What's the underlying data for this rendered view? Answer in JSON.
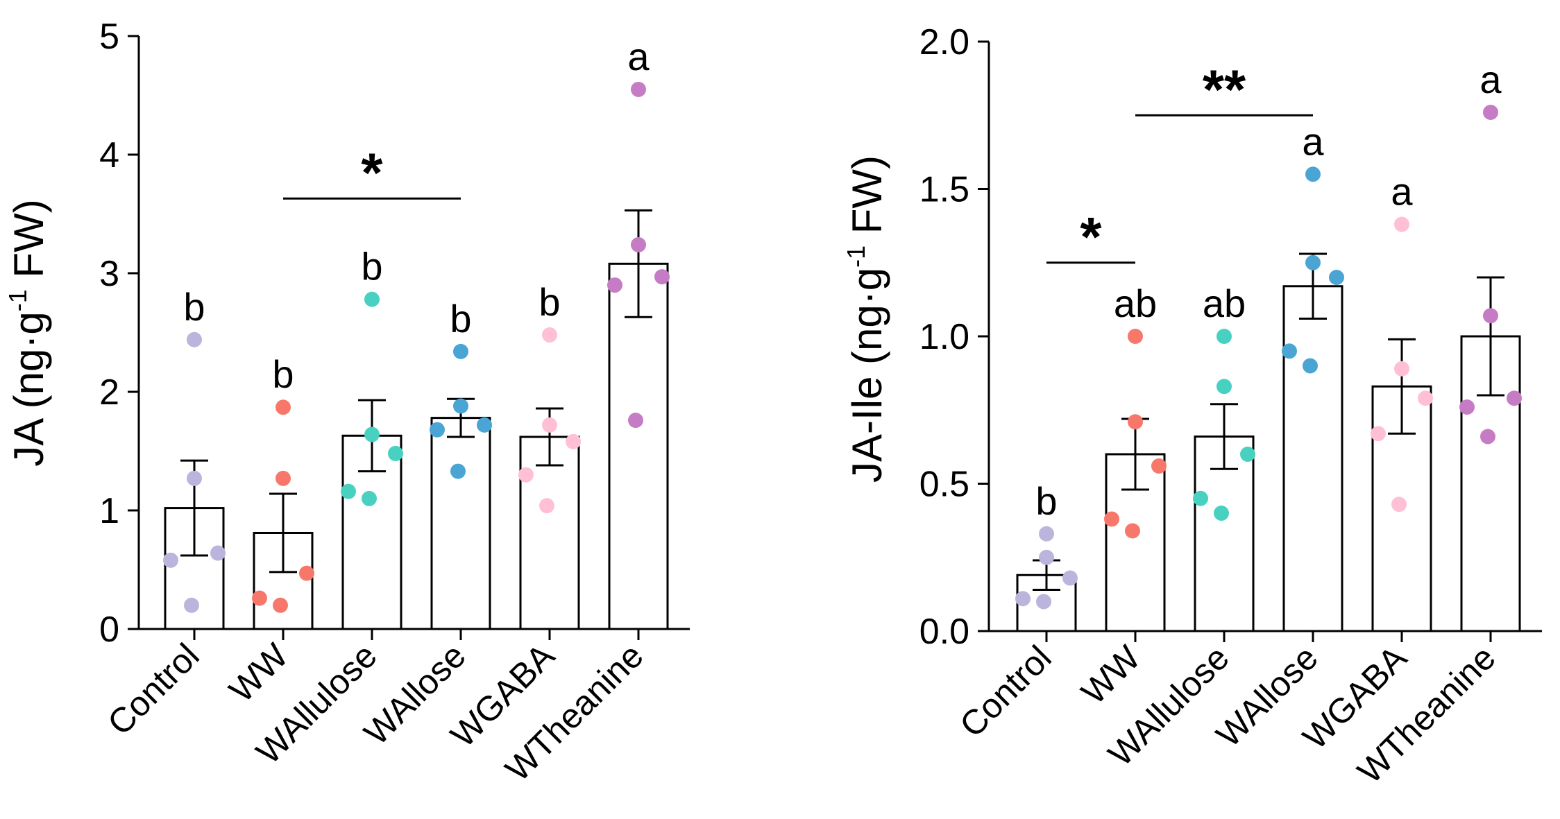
{
  "chart_data": [
    {
      "type": "bar",
      "ylabel": "JA (ng·g",
      "ylabel_sup": "-1",
      "ylabel_tail": " FW)",
      "ylim": [
        0,
        5
      ],
      "yticks": [
        "0",
        "1",
        "2",
        "3",
        "4",
        "5"
      ],
      "categories": [
        "Control",
        "WW",
        "WAllulose",
        "WAllose",
        "WGABA",
        "WTheanine"
      ],
      "values": [
        1.02,
        0.81,
        1.63,
        1.78,
        1.62,
        3.08
      ],
      "errors": [
        0.4,
        0.33,
        0.3,
        0.16,
        0.24,
        0.45
      ],
      "letters": [
        "b",
        "b",
        "b",
        "b",
        "b",
        "a"
      ],
      "points": [
        [
          2.44,
          1.27,
          0.64,
          0.58,
          0.2
        ],
        [
          1.87,
          1.27,
          0.47,
          0.26,
          0.2
        ],
        [
          2.78,
          1.64,
          1.48,
          1.16,
          1.1
        ],
        [
          2.34,
          1.88,
          1.72,
          1.68,
          1.33
        ],
        [
          2.48,
          1.72,
          1.58,
          1.3,
          1.04
        ],
        [
          4.55,
          3.24,
          2.97,
          2.9,
          1.76
        ]
      ],
      "significance": [
        {
          "from": "WW",
          "to": "WAllose",
          "label": "*"
        }
      ],
      "colors": [
        "#bbb4dc",
        "#f7786b",
        "#48d1c1",
        "#4aa5d4",
        "#ffc0d6",
        "#c67cc4"
      ],
      "grid": false
    },
    {
      "type": "bar",
      "ylabel": "JA-Ile (ng·g",
      "ylabel_sup": "-1",
      "ylabel_tail": " FW)",
      "ylim": [
        0,
        2
      ],
      "yticks": [
        "0.0",
        "0.5",
        "1.0",
        "1.5",
        "2.0"
      ],
      "categories": [
        "Control",
        "WW",
        "WAllulose",
        "WAllose",
        "WGABA",
        "WTheanine"
      ],
      "values": [
        0.19,
        0.6,
        0.66,
        1.17,
        0.83,
        1.0
      ],
      "errors": [
        0.05,
        0.12,
        0.11,
        0.11,
        0.16,
        0.2
      ],
      "letters": [
        "b",
        "ab",
        "ab",
        "a",
        "a",
        "a"
      ],
      "points": [
        [
          0.33,
          0.25,
          0.18,
          0.11,
          0.1
        ],
        [
          1.0,
          0.71,
          0.56,
          0.38,
          0.34
        ],
        [
          1.0,
          0.83,
          0.6,
          0.45,
          0.4
        ],
        [
          1.55,
          1.25,
          1.2,
          0.95,
          0.9
        ],
        [
          1.38,
          0.89,
          0.79,
          0.67,
          0.43
        ],
        [
          1.76,
          1.07,
          0.79,
          0.76,
          0.66
        ]
      ],
      "significance": [
        {
          "from": "Control",
          "to": "WW",
          "label": "*"
        },
        {
          "from": "WW",
          "to": "WAllose",
          "label": "**"
        }
      ],
      "colors": [
        "#bbb4dc",
        "#f7786b",
        "#48d1c1",
        "#4aa5d4",
        "#ffc0d6",
        "#c67cc4"
      ],
      "grid": false
    }
  ]
}
